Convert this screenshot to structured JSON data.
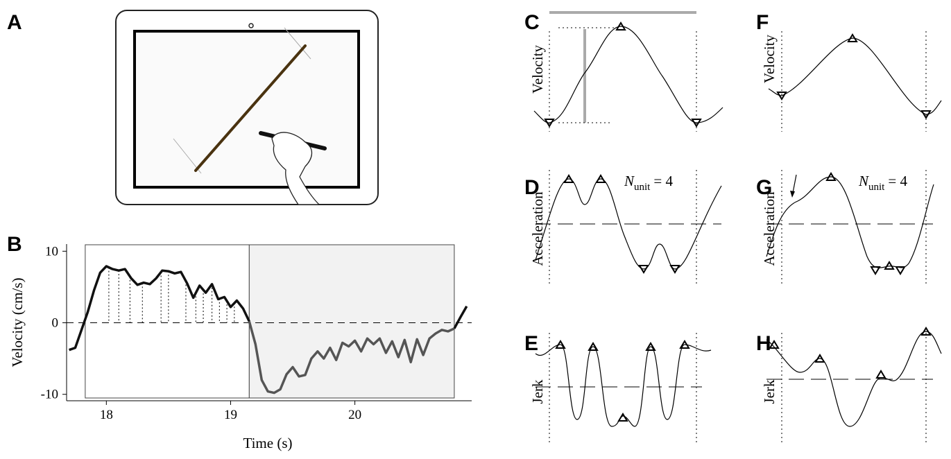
{
  "panels": {
    "A": "A",
    "B": "B",
    "C": "C",
    "D": "D",
    "E": "E",
    "F": "F",
    "G": "G",
    "H": "H"
  },
  "ylabels": {
    "velocity": "Velocity",
    "acceleration": "Acceleration",
    "jerk": "Jerk"
  },
  "n_unit": {
    "symbol": "N",
    "subscript": "unit",
    "rest": "= 4"
  },
  "chart_data": {
    "type": "line",
    "xlabel": "Time (s)",
    "ylabel": "Velocity (cm/s)",
    "xlim": [
      17.68,
      20.94
    ],
    "ylim": [
      -10.9,
      11
    ],
    "xticks": [
      18,
      19,
      20
    ],
    "yticks": [
      -10,
      0,
      10
    ],
    "regions": [
      {
        "x": [
          17.83,
          19.15
        ],
        "fill": "#ffffff"
      },
      {
        "x": [
          19.15,
          20.8
        ],
        "fill": "#f2f2f2"
      }
    ],
    "dotted_x": [
      18.02,
      18.1,
      18.19,
      18.29,
      18.44,
      18.5,
      18.64,
      18.72,
      18.78,
      18.85,
      18.91,
      18.97,
      19.03
    ],
    "x": [
      17.7,
      17.75,
      17.8,
      17.85,
      17.9,
      17.95,
      18.0,
      18.05,
      18.1,
      18.15,
      18.2,
      18.25,
      18.3,
      18.35,
      18.4,
      18.45,
      18.5,
      18.55,
      18.6,
      18.65,
      18.7,
      18.75,
      18.8,
      18.85,
      18.9,
      18.95,
      19.0,
      19.05,
      19.1,
      19.15,
      19.2,
      19.25,
      19.3,
      19.35,
      19.4,
      19.45,
      19.5,
      19.55,
      19.6,
      19.65,
      19.7,
      19.75,
      19.8,
      19.85,
      19.9,
      19.95,
      20.0,
      20.05,
      20.1,
      20.15,
      20.2,
      20.25,
      20.3,
      20.35,
      20.4,
      20.45,
      20.5,
      20.55,
      20.6,
      20.65,
      20.7,
      20.75,
      20.8,
      20.85,
      20.9
    ],
    "series": [
      {
        "color": "#111111",
        "values": [
          -3.8,
          -3.5,
          -1,
          1.5,
          4.5,
          7,
          7.9,
          7.5,
          7.3,
          7.5,
          6.2,
          5.3,
          5.6,
          5.4,
          6.2,
          7.3,
          7.2,
          6.9,
          7.1,
          5.5,
          3.5,
          5.2,
          4.2,
          5.4,
          3.3,
          3.6,
          2.2,
          3.1,
          2.0,
          0.2,
          null,
          null,
          null,
          null,
          null,
          null,
          null,
          null,
          null,
          null,
          null,
          null,
          null,
          null,
          null,
          null,
          null,
          null,
          null,
          null,
          null,
          null,
          null,
          null,
          null,
          null,
          null,
          null,
          null,
          null,
          null,
          null,
          -0.8,
          0.8,
          2.3
        ]
      },
      {
        "color": "#555555",
        "values": [
          null,
          null,
          null,
          null,
          null,
          null,
          null,
          null,
          null,
          null,
          null,
          null,
          null,
          null,
          null,
          null,
          null,
          null,
          null,
          null,
          null,
          null,
          null,
          null,
          null,
          null,
          null,
          null,
          null,
          0.2,
          -3,
          -8,
          -9.6,
          -9.8,
          -9.3,
          -7.2,
          -6.2,
          -7.5,
          -7.3,
          -5,
          -4,
          -5,
          -3.5,
          -5.2,
          -2.8,
          -3.3,
          -2.5,
          -4,
          -2.2,
          -3.0,
          -2.2,
          -4.2,
          -2.6,
          -4.8,
          -2.4,
          -5.5,
          -2.3,
          -4.5,
          -2.2,
          -1.5,
          -1,
          -1.2,
          -0.8,
          null,
          null
        ]
      }
    ]
  }
}
